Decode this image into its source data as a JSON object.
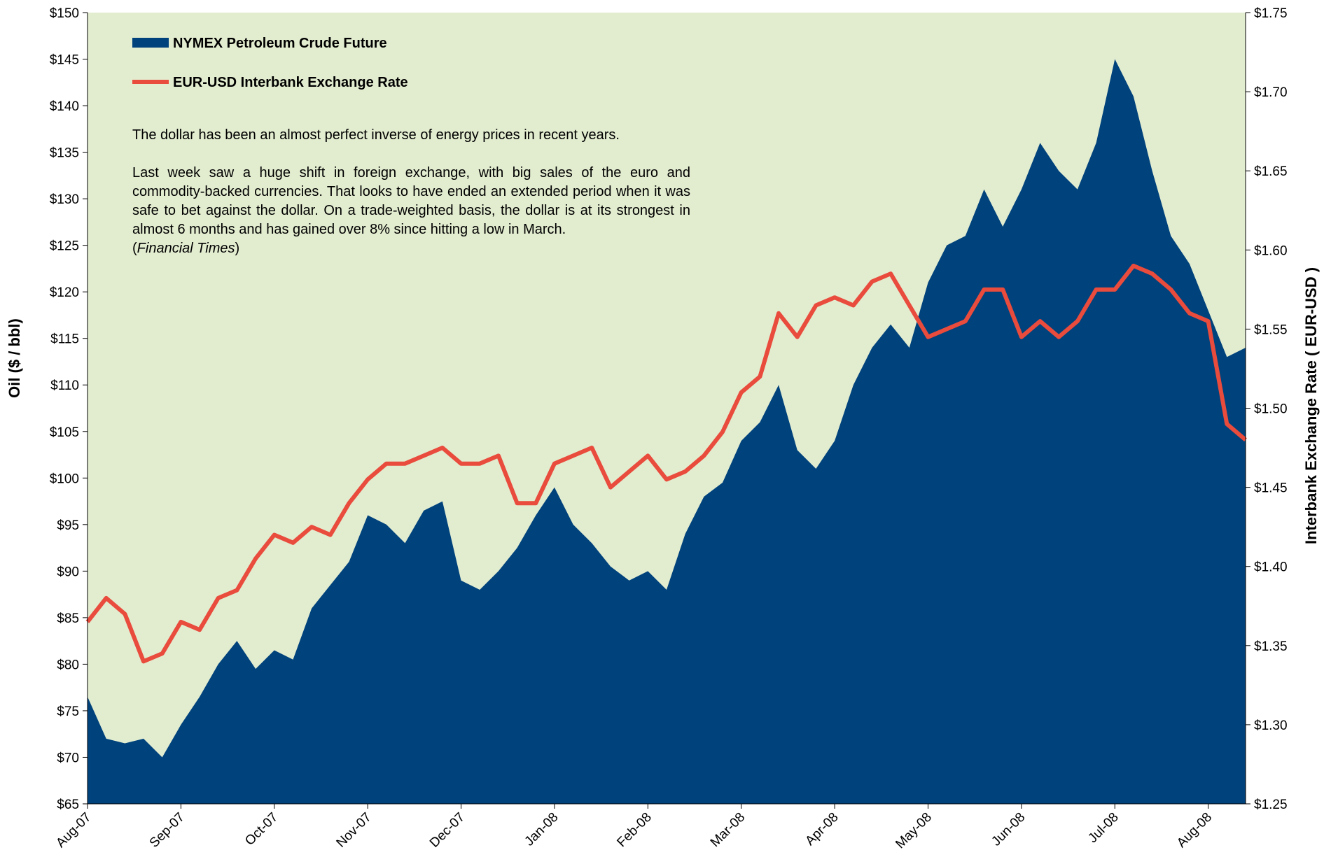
{
  "chart_data": {
    "type": "area-line",
    "categories": [
      "Aug-07",
      null,
      null,
      null,
      null,
      "Sep-07",
      null,
      null,
      null,
      null,
      "Oct-07",
      null,
      null,
      null,
      null,
      "Nov-07",
      null,
      null,
      null,
      null,
      "Dec-07",
      null,
      null,
      null,
      null,
      "Jan-08",
      null,
      null,
      null,
      null,
      "Feb-08",
      null,
      null,
      null,
      null,
      "Mar-08",
      null,
      null,
      null,
      null,
      "Apr-08",
      null,
      null,
      null,
      null,
      "May-08",
      null,
      null,
      null,
      null,
      "Jun-08",
      null,
      null,
      null,
      null,
      "Jul-08",
      null,
      null,
      null,
      null,
      "Aug-08",
      null,
      null
    ],
    "series": [
      {
        "name": "NYMEX Petroleum Crude Future",
        "color": "#00427c",
        "kind": "area",
        "values": [
          76.5,
          72,
          71.5,
          72,
          70,
          73.5,
          76.5,
          80,
          82.5,
          79.5,
          81.5,
          80.5,
          86,
          88.5,
          91,
          96,
          95,
          93,
          96.5,
          97.5,
          89,
          88,
          90,
          92.5,
          96,
          99,
          95,
          93,
          90.5,
          89,
          90,
          88,
          94,
          98,
          99.5,
          104,
          106,
          110,
          103,
          101,
          104,
          110,
          114,
          116.5,
          114,
          121,
          125,
          126,
          131,
          127,
          131,
          136,
          133,
          131,
          136,
          145,
          141,
          133,
          126,
          123,
          118,
          113,
          114
        ]
      },
      {
        "name": "EUR-USD Interbank Exchange Rate",
        "color": "#e94b3c",
        "kind": "line",
        "axis": "y2",
        "values": [
          1.365,
          1.38,
          1.37,
          1.34,
          1.345,
          1.365,
          1.36,
          1.38,
          1.385,
          1.405,
          1.42,
          1.415,
          1.425,
          1.42,
          1.44,
          1.455,
          1.465,
          1.465,
          1.47,
          1.475,
          1.465,
          1.465,
          1.47,
          1.44,
          1.44,
          1.465,
          1.47,
          1.475,
          1.45,
          1.46,
          1.47,
          1.455,
          1.46,
          1.47,
          1.485,
          1.51,
          1.52,
          1.56,
          1.545,
          1.565,
          1.57,
          1.565,
          1.58,
          1.585,
          1.565,
          1.545,
          1.55,
          1.555,
          1.575,
          1.575,
          1.545,
          1.555,
          1.545,
          1.555,
          1.575,
          1.575,
          1.59,
          1.585,
          1.575,
          1.56,
          1.555,
          1.49,
          1.48
        ]
      }
    ],
    "ylabel": "Oil ($ / bbl)",
    "y2label": "Interbank Exchange Rate ( EUR-USD )",
    "ylim": [
      65,
      150
    ],
    "yticks": [
      {
        "value": 65,
        "label": "$65"
      },
      {
        "value": 70,
        "label": "$70"
      },
      {
        "value": 75,
        "label": "$75"
      },
      {
        "value": 80,
        "label": "$80"
      },
      {
        "value": 85,
        "label": "$85"
      },
      {
        "value": 90,
        "label": "$90"
      },
      {
        "value": 95,
        "label": "$95"
      },
      {
        "value": 100,
        "label": "$100"
      },
      {
        "value": 105,
        "label": "$105"
      },
      {
        "value": 110,
        "label": "$110"
      },
      {
        "value": 115,
        "label": "$115"
      },
      {
        "value": 120,
        "label": "$120"
      },
      {
        "value": 125,
        "label": "$125"
      },
      {
        "value": 130,
        "label": "$130"
      },
      {
        "value": 135,
        "label": "$135"
      },
      {
        "value": 140,
        "label": "$140"
      },
      {
        "value": 145,
        "label": "$145"
      },
      {
        "value": 150,
        "label": "$150"
      }
    ],
    "y2lim": [
      1.25,
      1.75
    ],
    "y2ticks": [
      {
        "value": 1.25,
        "label": "$1.25"
      },
      {
        "value": 1.3,
        "label": "$1.30"
      },
      {
        "value": 1.35,
        "label": "$1.35"
      },
      {
        "value": 1.4,
        "label": "$1.40"
      },
      {
        "value": 1.45,
        "label": "$1.45"
      },
      {
        "value": 1.5,
        "label": "$1.50"
      },
      {
        "value": 1.55,
        "label": "$1.55"
      },
      {
        "value": 1.6,
        "label": "$1.60"
      },
      {
        "value": 1.65,
        "label": "$1.65"
      },
      {
        "value": 1.7,
        "label": "$1.70"
      },
      {
        "value": 1.75,
        "label": "$1.75"
      }
    ],
    "background": "#e2eccf",
    "notes": [
      "The dollar has been an almost perfect inverse of energy prices in recent years.",
      "Last week saw a huge shift in foreign exchange, with big sales of the euro and commodity-backed currencies. That looks to have ended an extended period when it was safe to bet against the dollar. On a trade-weighted basis, the dollar is at its strongest in almost 6 months and has gained over 8% since hitting a low in March."
    ],
    "citation": [
      "(",
      "Financial Times",
      ")"
    ]
  }
}
